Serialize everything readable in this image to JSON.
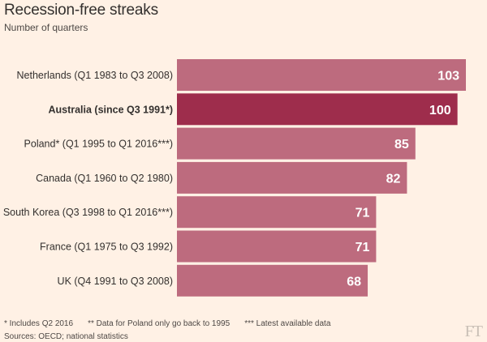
{
  "chart_data": {
    "type": "bar",
    "orientation": "horizontal",
    "title": "Recession-free streaks",
    "subtitle": "Number of quarters",
    "categories": [
      "Netherlands (Q1 1983 to Q3 2008)",
      "Australia (since Q3 1991*)",
      "Poland* (Q1 1995 to Q1 2016***)",
      "Canada (Q1 1960 to Q2 1980)",
      "South Korea (Q3 1998 to Q1 2016***)",
      "France (Q1 1975 to Q3 1992)",
      "UK (Q4 1991 to Q3 2008)"
    ],
    "values": [
      103,
      100,
      85,
      82,
      71,
      71,
      68
    ],
    "highlight_index": 1,
    "xlim": [
      0,
      103
    ],
    "grid": false,
    "colors": {
      "bar": "#bd6b7e",
      "highlight": "#9e2d4c",
      "value_label": "#ffffff",
      "background": "#fff1e5"
    }
  },
  "footnotes": [
    "* Includes Q2 2016",
    "** Data for Poland only go back to 1995",
    "*** Latest available data"
  ],
  "source": "Sources: OECD; national statistics",
  "logo": "FT"
}
